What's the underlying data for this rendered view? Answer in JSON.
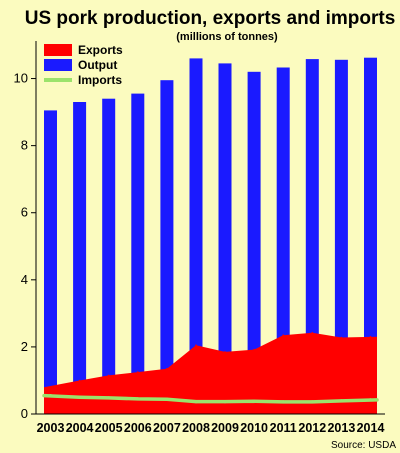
{
  "chart_data": {
    "type": "bar",
    "title": "US pork production, exports and imports",
    "subtitle": "(millions of tonnes)",
    "source": "Source: USDA",
    "categories": [
      "2003",
      "2004",
      "2005",
      "2006",
      "2007",
      "2008",
      "2009",
      "2010",
      "2011",
      "2012",
      "2013",
      "2014"
    ],
    "ylim": [
      0,
      11
    ],
    "yticks": [
      0,
      2,
      4,
      6,
      8,
      10
    ],
    "grid": false,
    "legend_position": "top-left",
    "series": [
      {
        "name": "Output",
        "kind": "bar",
        "color": "#1a1aff",
        "values": [
          9.05,
          9.3,
          9.4,
          9.55,
          9.95,
          10.6,
          10.45,
          10.2,
          10.33,
          10.58,
          10.56,
          10.62
        ]
      },
      {
        "name": "Exports",
        "kind": "area",
        "color": "#ff0000",
        "values": [
          0.8,
          1.0,
          1.15,
          1.25,
          1.35,
          2.05,
          1.85,
          1.92,
          2.35,
          2.42,
          2.28,
          2.3
        ]
      },
      {
        "name": "Imports",
        "kind": "line",
        "color": "#9be36b",
        "values": [
          0.55,
          0.5,
          0.48,
          0.45,
          0.44,
          0.37,
          0.37,
          0.38,
          0.36,
          0.36,
          0.39,
          0.42
        ]
      }
    ],
    "legend": [
      "Exports",
      "Output",
      "Imports"
    ]
  }
}
